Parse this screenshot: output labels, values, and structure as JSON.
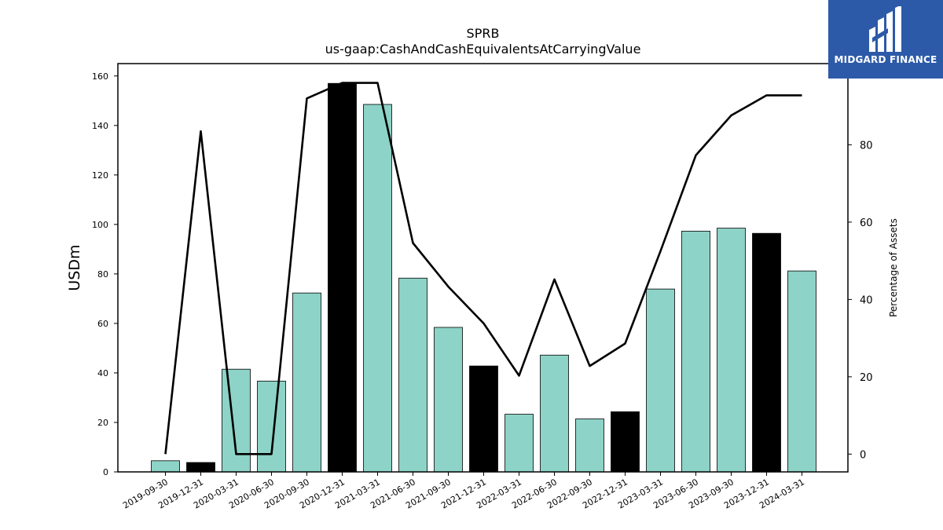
{
  "brand": {
    "name": "MIDGARD FINANCE",
    "icon": "midgard-logo-icon",
    "background": "#2c5aa8"
  },
  "chart_data": {
    "type": "bar",
    "title": "SPRB",
    "subtitle": "us-gaap:CashAndCashEquivalentsAtCarryingValue",
    "ylabel": "USDm",
    "y2label": "Percentage of Assets",
    "ylim": [
      0,
      165
    ],
    "y2lim": [
      -4.6,
      101
    ],
    "yticks": [
      0,
      20,
      40,
      60,
      80,
      100,
      120,
      140,
      160
    ],
    "y2ticks": [
      0,
      20,
      40,
      60,
      80
    ],
    "categories": [
      "2019-09-30",
      "2019-12-31",
      "2020-03-31",
      "2020-06-30",
      "2020-09-30",
      "2020-12-31",
      "2021-03-31",
      "2021-06-30",
      "2021-09-30",
      "2021-12-31",
      "2022-03-31",
      "2022-06-30",
      "2022-09-30",
      "2022-12-31",
      "2023-03-31",
      "2023-06-30",
      "2023-09-30",
      "2023-12-31",
      "2024-03-31"
    ],
    "series": [
      {
        "kind": "bar",
        "values": [
          4.5,
          3.8,
          41.5,
          36.7,
          72.3,
          157.0,
          148.5,
          78.3,
          58.4,
          42.8,
          23.3,
          47.2,
          21.4,
          24.3,
          73.9,
          97.3,
          98.5,
          96.4,
          81.2
        ],
        "highlight": [
          false,
          true,
          false,
          false,
          false,
          true,
          false,
          false,
          false,
          true,
          false,
          false,
          false,
          true,
          false,
          false,
          false,
          true,
          false
        ],
        "color": "#8dd3c7",
        "highlight_color": "#000000"
      },
      {
        "kind": "line",
        "axis": "right",
        "values": [
          0.0,
          83.5,
          0.0,
          0.0,
          92.0,
          96.0,
          96.0,
          54.6,
          43.3,
          33.8,
          20.3,
          45.2,
          22.8,
          28.6,
          52.5,
          77.3,
          87.6,
          92.8,
          92.8
        ],
        "color": "#000000"
      }
    ],
    "grid": false,
    "legend": "none"
  }
}
